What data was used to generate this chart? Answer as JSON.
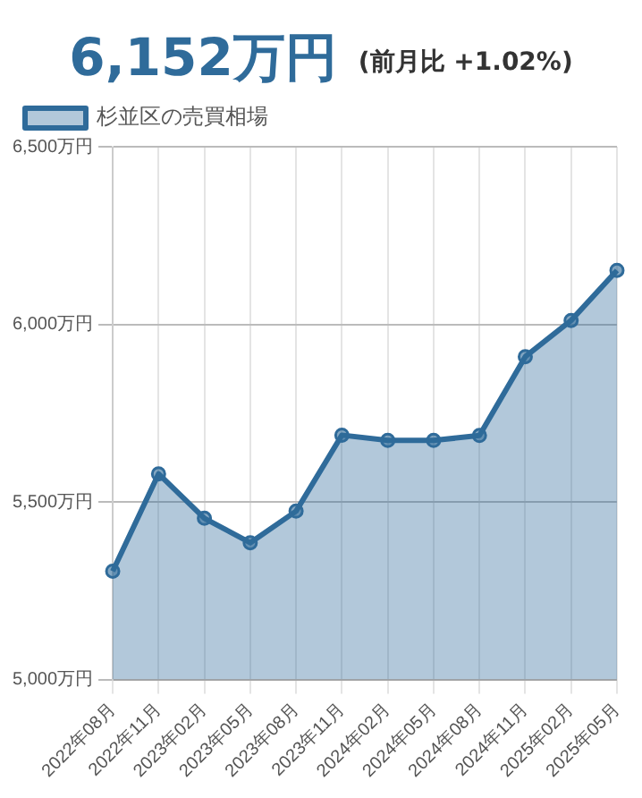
{
  "chart_data": {
    "type": "area",
    "title": "6,152万円",
    "subtitle": "(前月比 +1.02%)",
    "categories": [
      "2022年08月",
      "2022年11月",
      "2023年02月",
      "2023年05月",
      "2023年08月",
      "2023年11月",
      "2024年02月",
      "2024年05月",
      "2024年08月",
      "2024年11月",
      "2025年02月",
      "2025年05月"
    ],
    "series": [
      {
        "name": "杉並区の売買相場",
        "color": "#2f6b9a",
        "values": [
          5305,
          5579,
          5454,
          5385,
          5474,
          5688,
          5673,
          5673,
          5687,
          5909,
          6011,
          6152
        ]
      }
    ],
    "ylim": [
      5000,
      6500
    ],
    "yticks": [
      {
        "value": 5000,
        "label": "5,000万円"
      },
      {
        "value": 5500,
        "label": "5,500万円"
      },
      {
        "value": 6000,
        "label": "6,000万円"
      },
      {
        "value": 6500,
        "label": "6,500万円"
      }
    ],
    "grid": true,
    "legend": "top left",
    "marker": "circle",
    "line_style": "solid"
  }
}
